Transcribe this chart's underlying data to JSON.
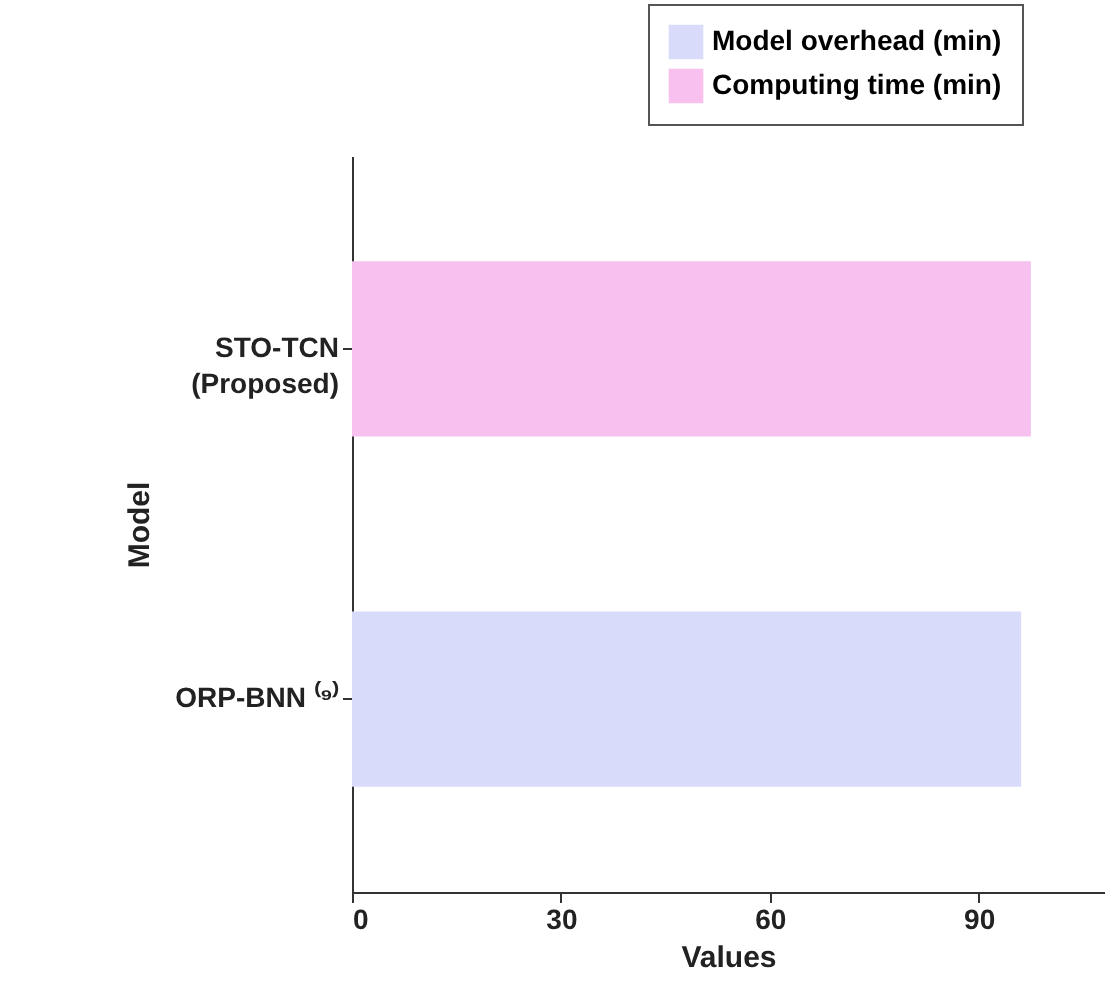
{
  "chart_data": {
    "type": "bar",
    "orientation": "horizontal",
    "xlabel": "Values",
    "ylabel": "Model",
    "categories": [
      "STO-TCN\n(Proposed)",
      "ORP-BNN ⁽⁹⁾"
    ],
    "series": [
      {
        "name": "Model overhead (min)",
        "color": "#d8dcfa",
        "values": [
          null,
          96.1
        ]
      },
      {
        "name": "Computing time (min)",
        "color": "#f7c0ee",
        "values": [
          97.5,
          null
        ]
      }
    ],
    "xlim": [
      0,
      108
    ],
    "xticks": [
      0,
      30,
      60,
      90
    ],
    "legend": "top right"
  }
}
